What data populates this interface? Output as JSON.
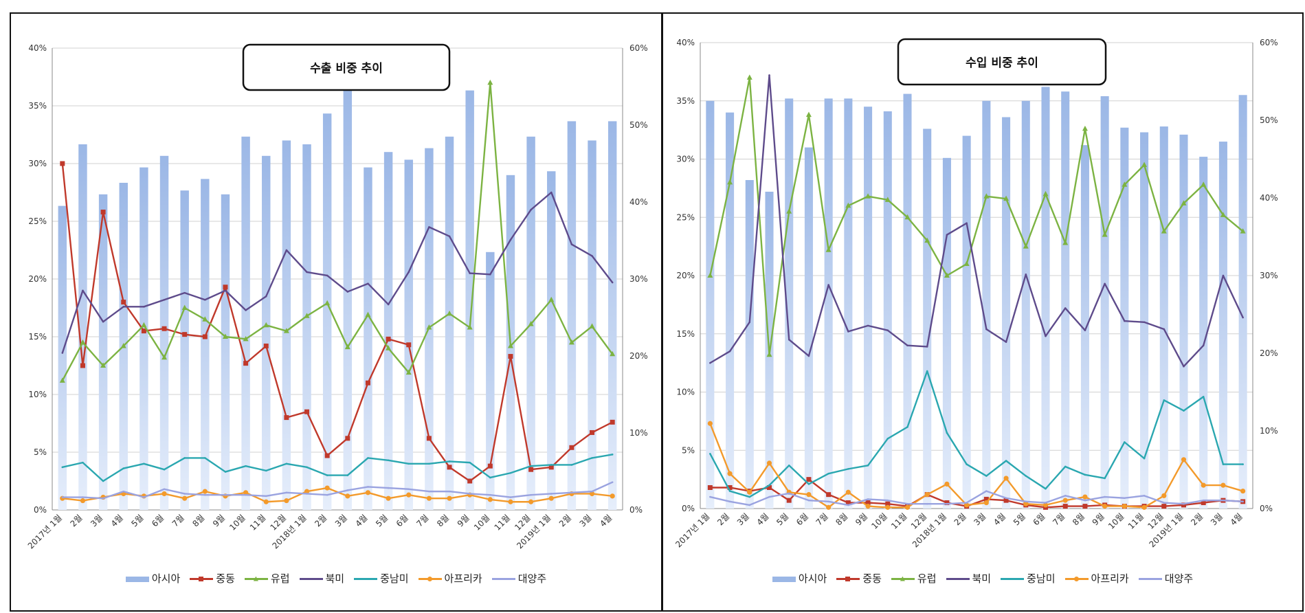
{
  "colors": {
    "asia": "#9bb7e6",
    "china": "#c0392b",
    "europe": "#7cb342",
    "northamerica": "#5e4b8b",
    "latam": "#2aa7b0",
    "africa": "#f39a2b",
    "oceania": "#9aa3e0"
  },
  "legend": [
    "아시아",
    "중동",
    "유럽",
    "북미",
    "중남미",
    "아프리카",
    "대양주"
  ],
  "chart_data": [
    {
      "type": "bar+line",
      "title": "수출 비중 추이",
      "categories": [
        "2017년 1월",
        "2월",
        "3월",
        "4월",
        "5월",
        "6월",
        "7월",
        "8월",
        "9월",
        "10월",
        "11월",
        "12월",
        "2018년 1월",
        "2월",
        "3월",
        "4월",
        "5월",
        "6월",
        "7월",
        "8월",
        "9월",
        "10월",
        "11월",
        "12월",
        "2019년 1월",
        "2월",
        "3월",
        "4월"
      ],
      "y_left_ticks": [
        "0%",
        "5%",
        "10%",
        "15%",
        "20%",
        "25%",
        "30%",
        "35%",
        "40%"
      ],
      "y_right_ticks": [
        "0%",
        "10%",
        "20%",
        "30%",
        "40%",
        "50%",
        "60%"
      ],
      "ylim_left": [
        0,
        40
      ],
      "ylim_right": [
        0,
        60
      ],
      "bars": {
        "name": "아시아",
        "axis": "right",
        "values": [
          39.5,
          47.5,
          41,
          42.5,
          44.5,
          46,
          41.5,
          43,
          41,
          48.5,
          46,
          48,
          47.5,
          51.5,
          55,
          44.5,
          46.5,
          45.5,
          47,
          48.5,
          54.5,
          33.5,
          43.5,
          48.5,
          44,
          50.5,
          48,
          50.5
        ]
      },
      "series": [
        {
          "name": "중동",
          "color_key": "china",
          "values": [
            30,
            12.5,
            25.8,
            18,
            15.5,
            15.7,
            15.2,
            15,
            19.3,
            12.7,
            14.2,
            8,
            8.5,
            4.7,
            6.2,
            11,
            14.8,
            14.3,
            6.2,
            3.7,
            2.5,
            3.8,
            13.3,
            3.5,
            3.7,
            5.4,
            6.7,
            7.6
          ]
        },
        {
          "name": "유럽",
          "color_key": "europe",
          "values": [
            11.2,
            14.5,
            12.5,
            14.2,
            16,
            13.2,
            17.5,
            16.5,
            15,
            14.8,
            16,
            15.5,
            16.8,
            17.9,
            14.1,
            16.9,
            14,
            11.9,
            15.8,
            17,
            15.8,
            37,
            14.2,
            16.1,
            18.2,
            14.5,
            15.9,
            13.5
          ]
        },
        {
          "name": "북미",
          "color_key": "northamerica",
          "values": [
            13.6,
            19,
            16.3,
            17.6,
            17.6,
            18.2,
            18.8,
            18.2,
            19,
            17.3,
            18.5,
            22.5,
            20.6,
            20.3,
            18.9,
            19.6,
            17.8,
            20.6,
            24.5,
            23.7,
            20.5,
            20.4,
            23.4,
            26,
            27.5,
            23,
            22,
            19.7
          ]
        },
        {
          "name": "중남미",
          "color_key": "latam",
          "values": [
            3.7,
            4.1,
            2.5,
            3.6,
            4,
            3.5,
            4.5,
            4.5,
            3.3,
            3.8,
            3.4,
            4,
            3.7,
            3,
            3,
            4.5,
            4.3,
            4,
            4,
            4.2,
            4.1,
            2.8,
            3.2,
            3.8,
            3.9,
            3.9,
            4.5,
            4.8
          ]
        },
        {
          "name": "아프리카",
          "color_key": "africa",
          "values": [
            1,
            0.8,
            1.1,
            1.4,
            1.2,
            1.4,
            1,
            1.6,
            1.2,
            1.5,
            0.7,
            0.8,
            1.6,
            1.9,
            1.2,
            1.5,
            1,
            1.3,
            1,
            1,
            1.3,
            0.9,
            0.7,
            0.7,
            1,
            1.4,
            1.4,
            1.2
          ]
        },
        {
          "name": "대양주",
          "color_key": "oceania",
          "values": [
            1.1,
            1.1,
            1,
            1.6,
            1.1,
            1.8,
            1.4,
            1.3,
            1.3,
            1.3,
            1.2,
            1.5,
            1.4,
            1.3,
            1.7,
            2,
            1.9,
            1.8,
            1.6,
            1.6,
            1.4,
            1.3,
            1.1,
            1.3,
            1.4,
            1.5,
            1.6,
            2.4
          ]
        }
      ]
    },
    {
      "type": "bar+line",
      "title": "수입 비중 추이",
      "categories": [
        "2017년 1월",
        "2월",
        "3월",
        "4월",
        "5월",
        "6월",
        "7월",
        "8월",
        "9월",
        "10월",
        "11월",
        "12월",
        "2018년 1월",
        "2월",
        "3월",
        "4월",
        "5월",
        "6월",
        "7월",
        "8월",
        "9월",
        "10월",
        "11월",
        "12월",
        "2019년 1월",
        "2월",
        "3월",
        "4월"
      ],
      "y_left_ticks": [
        "0%",
        "5%",
        "10%",
        "15%",
        "20%",
        "25%",
        "30%",
        "35%",
        "40%"
      ],
      "y_right_ticks": [
        "0%",
        "10%",
        "20%",
        "30%",
        "40%",
        "50%",
        "60%"
      ],
      "ylim_left": [
        0,
        40
      ],
      "ylim_right": [
        0,
        60
      ],
      "bars": {
        "name": "아시아",
        "axis": "left",
        "values": [
          35,
          34,
          28.2,
          27.2,
          35.2,
          31,
          35.2,
          35.2,
          34.5,
          34.1,
          35.6,
          32.6,
          30.1,
          32,
          35,
          33.6,
          35,
          36.2,
          35.8,
          31.2,
          35.4,
          32.7,
          32.3,
          32.8,
          32.1,
          30.2,
          31.5,
          35.5
        ]
      },
      "series": [
        {
          "name": "중동",
          "color_key": "china",
          "values": [
            1.8,
            1.8,
            1.5,
            1.8,
            0.7,
            2.5,
            1.2,
            0.5,
            0.5,
            0.4,
            0.2,
            1.2,
            0.5,
            0.2,
            0.8,
            0.7,
            0.3,
            0.1,
            0.2,
            0.2,
            0.3,
            0.2,
            0.2,
            0.2,
            0.3,
            0.5,
            0.7,
            0.6
          ]
        },
        {
          "name": "유럽",
          "color_key": "europe",
          "values": [
            20,
            28,
            37,
            13.2,
            25.5,
            33.8,
            22.2,
            26,
            26.8,
            26.5,
            25,
            23,
            20,
            21,
            26.8,
            26.6,
            22.5,
            27,
            22.8,
            32.6,
            23.5,
            27.8,
            29.5,
            23.8,
            26.2,
            27.8,
            25.2,
            23.8
          ]
        },
        {
          "name": "북미",
          "color_key": "northamerica",
          "values": [
            12.5,
            13.5,
            16,
            37.2,
            14.5,
            13.1,
            19.2,
            15.2,
            15.7,
            15.3,
            14,
            13.9,
            23.5,
            24.5,
            15.4,
            14.3,
            20.1,
            14.8,
            17.2,
            15.3,
            19.3,
            16.1,
            16,
            15.4,
            12.2,
            14,
            20,
            16.4
          ]
        },
        {
          "name": "중남미",
          "color_key": "latam",
          "values": [
            4.7,
            1.5,
            1,
            2,
            3.7,
            2.1,
            3,
            3.4,
            3.7,
            6,
            7,
            11.8,
            6.5,
            3.8,
            2.8,
            4.1,
            2.8,
            1.7,
            3.6,
            2.9,
            2.6,
            5.7,
            4.3,
            9.3,
            8.4,
            9.6,
            3.8,
            3.8
          ]
        },
        {
          "name": "아프리카",
          "color_key": "africa",
          "values": [
            7.3,
            3,
            1.4,
            3.9,
            1.4,
            1.2,
            0.1,
            1.4,
            0.2,
            0.1,
            0.1,
            1.2,
            2.1,
            0.3,
            0.5,
            2.6,
            0.4,
            0.3,
            0.7,
            1,
            0.2,
            0.2,
            0.1,
            1.1,
            4.2,
            2,
            2,
            1.5
          ]
        },
        {
          "name": "대양주",
          "color_key": "oceania",
          "values": [
            1,
            0.6,
            0.3,
            1,
            1.3,
            0.7,
            0.6,
            0.3,
            0.8,
            0.7,
            0.4,
            0.4,
            0.4,
            0.5,
            1.5,
            0.9,
            0.6,
            0.5,
            1.1,
            0.7,
            1,
            0.9,
            1.1,
            0.5,
            0.4,
            0.7,
            0.7,
            0.6
          ]
        }
      ]
    }
  ]
}
